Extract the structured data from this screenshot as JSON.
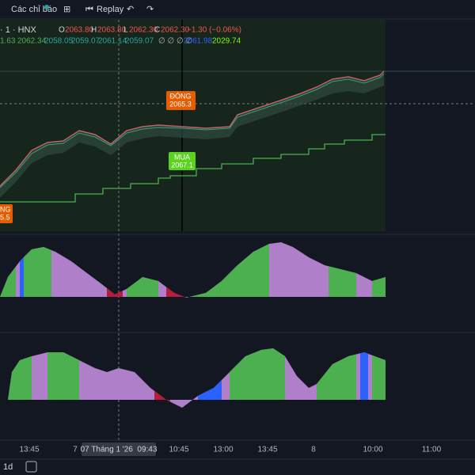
{
  "toolbar": {
    "indicators": "Các chỉ báo",
    "replay": "Replay"
  },
  "legend": {
    "symbol": "· 1 · HNX",
    "open_label": "O",
    "open": "2063.80",
    "high_label": "H",
    "high": "2063.80",
    "low_label": "L",
    "low": "2062.30",
    "close_label": "C",
    "close": "2062.30",
    "change": "−1.30 (−0.06%)",
    "indicators": [
      "1.63",
      "2062.34",
      "2058.05",
      "2059.07",
      "2061.14",
      "2059.07",
      "∅ ∅ ∅ ∅",
      "2061.98",
      "2029.74"
    ]
  },
  "markers": [
    {
      "label": "ĐÓNG",
      "price": "2065.3"
    },
    {
      "label": "MUA",
      "price": "2067.1"
    },
    {
      "label": "NG",
      "price": "5.5"
    }
  ],
  "time_axis": {
    "ticks": [
      "13:45",
      "7",
      "10:45",
      "13:00",
      "13:45",
      "8",
      "10:00",
      "11:00"
    ],
    "crosshair": "07 Tháng 1 '26  09:43"
  },
  "footer": {
    "interval": "1d"
  }
}
